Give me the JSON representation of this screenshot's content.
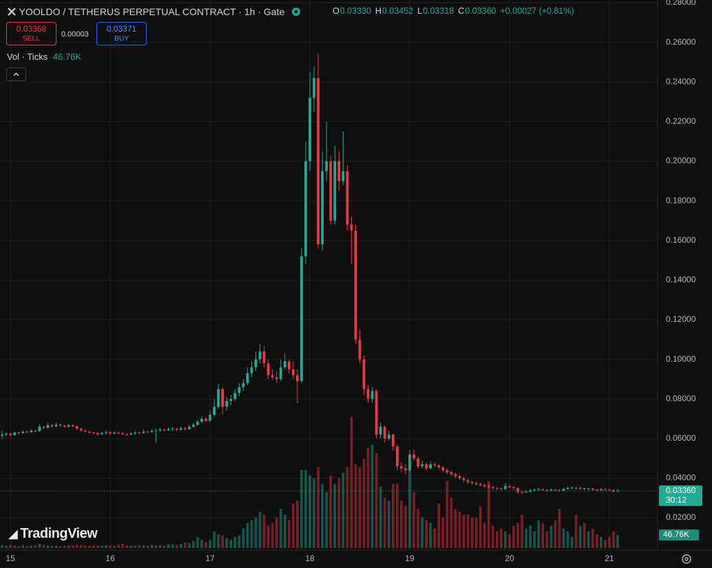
{
  "header": {
    "title": "YOOLDO / TETHERUS PERPETUAL CONTRACT · 1h · Gate",
    "ohlc": [
      {
        "key": "O",
        "value": "0.03330"
      },
      {
        "key": "H",
        "value": "0.03452"
      },
      {
        "key": "L",
        "value": "0.03318"
      },
      {
        "key": "C",
        "value": "0.03360"
      }
    ],
    "change": "+0.00027 (+0.81%)",
    "sell": {
      "price": "0.03368",
      "label": "SELL"
    },
    "spread": "0.00003",
    "buy": {
      "price": "0.03371",
      "label": "BUY"
    },
    "volume_indicator": {
      "name": "Vol · Ticks",
      "value": "46.76K"
    }
  },
  "logo": "TradingView",
  "chart_data": {
    "type": "candlestick",
    "up_color": "#22ab94",
    "down_color": "#f23645",
    "grid": true,
    "ylim": [
      0.0037,
      0.2814
    ],
    "yticks": [
      {
        "value": 0.02,
        "label": "0.02000"
      },
      {
        "value": 0.04,
        "label": "0.04000"
      },
      {
        "value": 0.06,
        "label": "0.06000"
      },
      {
        "value": 0.08,
        "label": "0.08000"
      },
      {
        "value": 0.1,
        "label": "0.10000"
      },
      {
        "value": 0.12,
        "label": "0.12000"
      },
      {
        "value": 0.14,
        "label": "0.14000"
      },
      {
        "value": 0.16,
        "label": "0.16000"
      },
      {
        "value": 0.18,
        "label": "0.18000"
      },
      {
        "value": 0.2,
        "label": "0.20000"
      },
      {
        "value": 0.22,
        "label": "0.22000"
      },
      {
        "value": 0.24,
        "label": "0.24000"
      },
      {
        "value": 0.26,
        "label": "0.26000"
      },
      {
        "value": 0.28,
        "label": "0.28000"
      }
    ],
    "xlim": [
      -0.5,
      157.6
    ],
    "xticks": [
      {
        "value": 2,
        "label": "15"
      },
      {
        "value": 26,
        "label": "16"
      },
      {
        "value": 50,
        "label": "17"
      },
      {
        "value": 74,
        "label": "18"
      },
      {
        "value": 98,
        "label": "19"
      },
      {
        "value": 122,
        "label": "20"
      },
      {
        "value": 146,
        "label": "21"
      }
    ],
    "price_tag": {
      "label": "0.03360",
      "countdown": "30:12"
    },
    "volume_tag": "46.76K",
    "volume_lim": [
      0,
      500000
    ],
    "candles": [
      [
        0.0615,
        0.064,
        0.06,
        0.062
      ],
      [
        0.062,
        0.0632,
        0.0612,
        0.0625
      ],
      [
        0.0625,
        0.063,
        0.061,
        0.0618
      ],
      [
        0.0618,
        0.0636,
        0.0615,
        0.063
      ],
      [
        0.063,
        0.0635,
        0.062,
        0.0628
      ],
      [
        0.0628,
        0.0642,
        0.0625,
        0.0635
      ],
      [
        0.0635,
        0.064,
        0.0626,
        0.0632
      ],
      [
        0.0632,
        0.0648,
        0.063,
        0.064
      ],
      [
        0.064,
        0.0645,
        0.063,
        0.0638
      ],
      [
        0.0638,
        0.0672,
        0.0635,
        0.066
      ],
      [
        0.066,
        0.0665,
        0.0648,
        0.0655
      ],
      [
        0.0655,
        0.0678,
        0.065,
        0.0668
      ],
      [
        0.0668,
        0.0672,
        0.0655,
        0.0662
      ],
      [
        0.0662,
        0.068,
        0.0658,
        0.067
      ],
      [
        0.067,
        0.0675,
        0.066,
        0.0665
      ],
      [
        0.0665,
        0.067,
        0.0655,
        0.066
      ],
      [
        0.066,
        0.0675,
        0.0657,
        0.0668
      ],
      [
        0.0668,
        0.0672,
        0.0658,
        0.0662
      ],
      [
        0.0662,
        0.0666,
        0.0645,
        0.065
      ],
      [
        0.065,
        0.0655,
        0.0635,
        0.064
      ],
      [
        0.064,
        0.0645,
        0.063,
        0.0635
      ],
      [
        0.0635,
        0.064,
        0.0625,
        0.063
      ],
      [
        0.063,
        0.0635,
        0.0622,
        0.0628
      ],
      [
        0.0628,
        0.0632,
        0.0615,
        0.0622
      ],
      [
        0.0622,
        0.0635,
        0.0618,
        0.0628
      ],
      [
        0.0628,
        0.064,
        0.0624,
        0.0632
      ],
      [
        0.0632,
        0.0636,
        0.062,
        0.0625
      ],
      [
        0.0625,
        0.0638,
        0.0622,
        0.063
      ],
      [
        0.063,
        0.0634,
        0.0622,
        0.0628
      ],
      [
        0.0628,
        0.0632,
        0.0618,
        0.0622
      ],
      [
        0.0622,
        0.0628,
        0.0615,
        0.062
      ],
      [
        0.062,
        0.0632,
        0.0618,
        0.0625
      ],
      [
        0.0625,
        0.0638,
        0.062,
        0.063
      ],
      [
        0.063,
        0.0635,
        0.0622,
        0.0628
      ],
      [
        0.0628,
        0.0645,
        0.0625,
        0.0635
      ],
      [
        0.0635,
        0.064,
        0.0628,
        0.0632
      ],
      [
        0.0632,
        0.0648,
        0.063,
        0.0638
      ],
      [
        0.0638,
        0.065,
        0.058,
        0.064
      ],
      [
        0.064,
        0.0655,
        0.0635,
        0.0645
      ],
      [
        0.0645,
        0.065,
        0.0635,
        0.0642
      ],
      [
        0.0642,
        0.0656,
        0.0638,
        0.0648
      ],
      [
        0.0648,
        0.0658,
        0.064,
        0.065
      ],
      [
        0.065,
        0.0655,
        0.0638,
        0.0645
      ],
      [
        0.0645,
        0.066,
        0.064,
        0.0652
      ],
      [
        0.0652,
        0.0658,
        0.064,
        0.0648
      ],
      [
        0.0648,
        0.0668,
        0.0645,
        0.066
      ],
      [
        0.066,
        0.068,
        0.0655,
        0.067
      ],
      [
        0.067,
        0.0695,
        0.0665,
        0.0685
      ],
      [
        0.0685,
        0.0712,
        0.068,
        0.07
      ],
      [
        0.07,
        0.0708,
        0.0682,
        0.069
      ],
      [
        0.069,
        0.074,
        0.0685,
        0.072
      ],
      [
        0.072,
        0.08,
        0.071,
        0.076
      ],
      [
        0.076,
        0.088,
        0.075,
        0.085
      ],
      [
        0.085,
        0.086,
        0.072,
        0.076
      ],
      [
        0.076,
        0.081,
        0.074,
        0.079
      ],
      [
        0.079,
        0.082,
        0.077,
        0.08
      ],
      [
        0.08,
        0.085,
        0.079,
        0.083
      ],
      [
        0.083,
        0.088,
        0.0815,
        0.086
      ],
      [
        0.086,
        0.09,
        0.084,
        0.088
      ],
      [
        0.088,
        0.096,
        0.087,
        0.093
      ],
      [
        0.093,
        0.099,
        0.091,
        0.096
      ],
      [
        0.096,
        0.104,
        0.094,
        0.1
      ],
      [
        0.1,
        0.108,
        0.098,
        0.104
      ],
      [
        0.104,
        0.107,
        0.096,
        0.098
      ],
      [
        0.098,
        0.1,
        0.09,
        0.092
      ],
      [
        0.092,
        0.095,
        0.0895,
        0.091
      ],
      [
        0.091,
        0.094,
        0.088,
        0.09
      ],
      [
        0.09,
        0.1,
        0.089,
        0.096
      ],
      [
        0.096,
        0.103,
        0.095,
        0.099
      ],
      [
        0.099,
        0.1,
        0.093,
        0.095
      ],
      [
        0.095,
        0.099,
        0.09,
        0.092
      ],
      [
        0.092,
        0.095,
        0.078,
        0.089
      ],
      [
        0.089,
        0.156,
        0.088,
        0.152
      ],
      [
        0.152,
        0.21,
        0.148,
        0.2
      ],
      [
        0.2,
        0.245,
        0.195,
        0.232
      ],
      [
        0.232,
        0.248,
        0.225,
        0.242
      ],
      [
        0.242,
        0.254,
        0.156,
        0.158
      ],
      [
        0.158,
        0.205,
        0.155,
        0.195
      ],
      [
        0.195,
        0.22,
        0.19,
        0.2
      ],
      [
        0.2,
        0.203,
        0.168,
        0.17
      ],
      [
        0.17,
        0.208,
        0.168,
        0.2
      ],
      [
        0.2,
        0.205,
        0.185,
        0.19
      ],
      [
        0.19,
        0.215,
        0.188,
        0.195
      ],
      [
        0.195,
        0.198,
        0.165,
        0.168
      ],
      [
        0.168,
        0.172,
        0.148,
        0.165
      ],
      [
        0.165,
        0.168,
        0.108,
        0.11
      ],
      [
        0.11,
        0.115,
        0.098,
        0.1
      ],
      [
        0.1,
        0.102,
        0.082,
        0.085
      ],
      [
        0.085,
        0.087,
        0.078,
        0.08
      ],
      [
        0.08,
        0.086,
        0.078,
        0.084
      ],
      [
        0.084,
        0.085,
        0.06,
        0.062
      ],
      [
        0.062,
        0.068,
        0.06,
        0.066
      ],
      [
        0.066,
        0.0665,
        0.058,
        0.06
      ],
      [
        0.06,
        0.064,
        0.059,
        0.062
      ],
      [
        0.062,
        0.0625,
        0.054,
        0.056
      ],
      [
        0.056,
        0.057,
        0.044,
        0.046
      ],
      [
        0.046,
        0.048,
        0.043,
        0.045
      ],
      [
        0.045,
        0.047,
        0.042,
        0.044
      ],
      [
        0.044,
        0.054,
        0.0435,
        0.052
      ],
      [
        0.052,
        0.0545,
        0.049,
        0.05
      ],
      [
        0.05,
        0.051,
        0.045,
        0.046
      ],
      [
        0.046,
        0.049,
        0.045,
        0.047
      ],
      [
        0.047,
        0.048,
        0.044,
        0.045
      ],
      [
        0.045,
        0.0485,
        0.0445,
        0.047
      ],
      [
        0.047,
        0.048,
        0.0455,
        0.0465
      ],
      [
        0.0465,
        0.047,
        0.0445,
        0.0455
      ],
      [
        0.0455,
        0.046,
        0.043,
        0.044
      ],
      [
        0.044,
        0.0448,
        0.042,
        0.043
      ],
      [
        0.043,
        0.044,
        0.041,
        0.042
      ],
      [
        0.042,
        0.0428,
        0.04,
        0.041
      ],
      [
        0.041,
        0.0418,
        0.039,
        0.04
      ],
      [
        0.04,
        0.0408,
        0.0382,
        0.039
      ],
      [
        0.039,
        0.0398,
        0.0372,
        0.038
      ],
      [
        0.038,
        0.0388,
        0.0368,
        0.0375
      ],
      [
        0.0375,
        0.0382,
        0.0362,
        0.037
      ],
      [
        0.037,
        0.0378,
        0.0358,
        0.0365
      ],
      [
        0.0365,
        0.0372,
        0.0352,
        0.036
      ],
      [
        0.036,
        0.0368,
        0.0348,
        0.0355
      ],
      [
        0.0355,
        0.0362,
        0.0342,
        0.035
      ],
      [
        0.035,
        0.0356,
        0.034,
        0.0348
      ],
      [
        0.0348,
        0.0354,
        0.0338,
        0.0345
      ],
      [
        0.0345,
        0.0375,
        0.0342,
        0.036
      ],
      [
        0.036,
        0.0368,
        0.0348,
        0.0355
      ],
      [
        0.0355,
        0.036,
        0.0342,
        0.035
      ],
      [
        0.035,
        0.0354,
        0.0322,
        0.033
      ],
      [
        0.033,
        0.0338,
        0.032,
        0.0328
      ],
      [
        0.0328,
        0.034,
        0.0324,
        0.0332
      ],
      [
        0.0332,
        0.0345,
        0.0328,
        0.0338
      ],
      [
        0.0338,
        0.0348,
        0.0334,
        0.0342
      ],
      [
        0.0342,
        0.0352,
        0.0338,
        0.0345
      ],
      [
        0.0345,
        0.0348,
        0.0335,
        0.034
      ],
      [
        0.034,
        0.0345,
        0.0332,
        0.0338
      ],
      [
        0.0338,
        0.0348,
        0.0334,
        0.0342
      ],
      [
        0.0342,
        0.0346,
        0.0334,
        0.034
      ],
      [
        0.034,
        0.0344,
        0.0332,
        0.0338
      ],
      [
        0.0338,
        0.0352,
        0.0335,
        0.0345
      ],
      [
        0.0345,
        0.0358,
        0.0342,
        0.035
      ],
      [
        0.035,
        0.0358,
        0.0345,
        0.0352
      ],
      [
        0.0352,
        0.0355,
        0.0342,
        0.0348
      ],
      [
        0.0348,
        0.0356,
        0.0344,
        0.035
      ],
      [
        0.035,
        0.0353,
        0.034,
        0.0345
      ],
      [
        0.0345,
        0.0352,
        0.034,
        0.0348
      ],
      [
        0.0348,
        0.035,
        0.0338,
        0.0342
      ],
      [
        0.0342,
        0.0346,
        0.0335,
        0.034
      ],
      [
        0.034,
        0.035,
        0.0337,
        0.0345
      ],
      [
        0.0345,
        0.0348,
        0.0338,
        0.0343
      ],
      [
        0.0343,
        0.0346,
        0.0335,
        0.034
      ],
      [
        0.034,
        0.0344,
        0.0328,
        0.0333
      ],
      [
        0.0333,
        0.03452,
        0.03318,
        0.0336
      ]
    ],
    "volumes": [
      10000,
      8000,
      12000,
      9000,
      7000,
      11000,
      8000,
      9000,
      10000,
      15000,
      12000,
      10000,
      8000,
      9000,
      7000,
      8000,
      9000,
      10000,
      12000,
      11000,
      9000,
      8000,
      10000,
      9000,
      8000,
      10000,
      9000,
      8000,
      12000,
      15000,
      10000,
      9000,
      8000,
      11000,
      10000,
      9000,
      12000,
      10000,
      11000,
      9000,
      14000,
      13000,
      12000,
      15000,
      20000,
      18000,
      25000,
      40000,
      30000,
      22000,
      30000,
      60000,
      50000,
      45000,
      35000,
      30000,
      40000,
      45000,
      70000,
      90000,
      100000,
      110000,
      130000,
      120000,
      80000,
      90000,
      110000,
      140000,
      120000,
      100000,
      160000,
      170000,
      280000,
      280000,
      260000,
      250000,
      290000,
      230000,
      200000,
      260000,
      230000,
      250000,
      270000,
      290000,
      470000,
      300000,
      290000,
      320000,
      360000,
      370000,
      340000,
      220000,
      180000,
      170000,
      230000,
      230000,
      170000,
      150000,
      280000,
      200000,
      140000,
      110000,
      100000,
      90000,
      70000,
      160000,
      110000,
      240000,
      180000,
      140000,
      130000,
      120000,
      120000,
      110000,
      110000,
      150000,
      90000,
      240000,
      80000,
      60000,
      70000,
      60000,
      50000,
      80000,
      90000,
      120000,
      70000,
      80000,
      60000,
      100000,
      90000,
      60000,
      80000,
      100000,
      140000,
      70000,
      60000,
      40000,
      120000,
      80000,
      90000,
      60000,
      70000,
      50000,
      40000,
      30000,
      40000,
      60000,
      46760
    ]
  }
}
